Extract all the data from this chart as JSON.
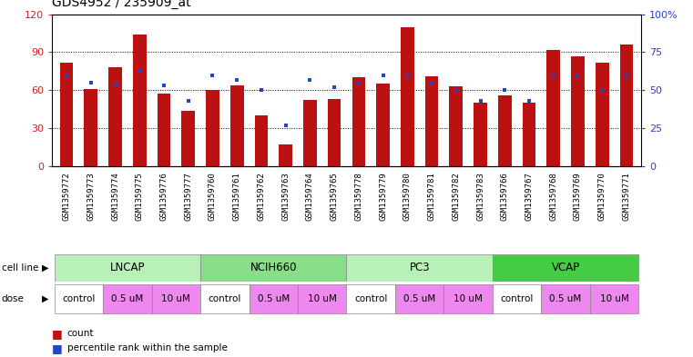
{
  "title": "GDS4952 / 235909_at",
  "samples": [
    "GSM1359772",
    "GSM1359773",
    "GSM1359774",
    "GSM1359775",
    "GSM1359776",
    "GSM1359777",
    "GSM1359760",
    "GSM1359761",
    "GSM1359762",
    "GSM1359763",
    "GSM1359764",
    "GSM1359765",
    "GSM1359778",
    "GSM1359779",
    "GSM1359780",
    "GSM1359781",
    "GSM1359782",
    "GSM1359783",
    "GSM1359766",
    "GSM1359767",
    "GSM1359768",
    "GSM1359769",
    "GSM1359770",
    "GSM1359771"
  ],
  "counts": [
    82,
    61,
    78,
    104,
    57,
    44,
    60,
    64,
    40,
    17,
    52,
    53,
    70,
    65,
    110,
    71,
    63,
    50,
    56,
    50,
    92,
    87,
    82,
    96
  ],
  "percentile_ranks": [
    60,
    55,
    54,
    63,
    53,
    43,
    60,
    57,
    50,
    27,
    57,
    52,
    55,
    60,
    60,
    55,
    50,
    43,
    50,
    43,
    60,
    60,
    50,
    60
  ],
  "cell_lines": [
    {
      "name": "LNCAP",
      "start": 0,
      "end": 6
    },
    {
      "name": "NCIH660",
      "start": 6,
      "end": 12
    },
    {
      "name": "PC3",
      "start": 12,
      "end": 18
    },
    {
      "name": "VCAP",
      "start": 18,
      "end": 24
    }
  ],
  "dose_groups": [
    {
      "name": "control",
      "start": 0,
      "end": 2,
      "pink": false
    },
    {
      "name": "0.5 uM",
      "start": 2,
      "end": 4,
      "pink": true
    },
    {
      "name": "10 uM",
      "start": 4,
      "end": 6,
      "pink": true
    },
    {
      "name": "control",
      "start": 6,
      "end": 8,
      "pink": false
    },
    {
      "name": "0.5 uM",
      "start": 8,
      "end": 10,
      "pink": true
    },
    {
      "name": "10 uM",
      "start": 10,
      "end": 12,
      "pink": true
    },
    {
      "name": "control",
      "start": 12,
      "end": 14,
      "pink": false
    },
    {
      "name": "0.5 uM",
      "start": 14,
      "end": 16,
      "pink": true
    },
    {
      "name": "10 uM",
      "start": 16,
      "end": 18,
      "pink": true
    },
    {
      "name": "control",
      "start": 18,
      "end": 20,
      "pink": false
    },
    {
      "name": "0.5 uM",
      "start": 20,
      "end": 22,
      "pink": true
    },
    {
      "name": "10 uM",
      "start": 22,
      "end": 24,
      "pink": true
    }
  ],
  "cell_line_colors": {
    "LNCAP": "#b8f0b8",
    "NCIH660": "#88dd88",
    "PC3": "#b8f0b8",
    "VCAP": "#44cc44"
  },
  "dose_color_pink": "#ee88ee",
  "dose_color_white": "#ffffff",
  "bar_color": "#bb1111",
  "pct_color": "#2244cc",
  "plot_bg": "#ffffff",
  "label_bg": "#cccccc",
  "ylim_left": [
    0,
    120
  ],
  "ylim_right": [
    0,
    100
  ],
  "left_yticks": [
    0,
    30,
    60,
    90,
    120
  ],
  "right_yticks": [
    0,
    25,
    50,
    75,
    100
  ],
  "right_yticklabels": [
    "0",
    "25",
    "50",
    "75",
    "100%"
  ],
  "grid_lines": [
    30,
    60,
    90
  ],
  "title_fontsize": 10,
  "bar_width": 0.55
}
